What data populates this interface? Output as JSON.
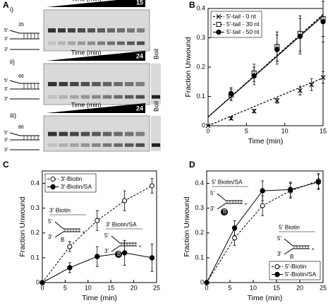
{
  "panel_labels": [
    "A",
    "B",
    "C",
    "D"
  ],
  "gels": [
    {
      "label": "i)",
      "wedge": "Time (min)",
      "end": "15",
      "strands": [
        "5'",
        "35",
        "3'",
        "3'"
      ],
      "lanes": 10,
      "boil": null
    },
    {
      "label": "ii)",
      "wedge": "Time (min)",
      "end": "24",
      "strands": [
        "5'",
        "66",
        "3'",
        "3'"
      ],
      "lanes": 9,
      "boil": "Boil"
    },
    {
      "label": "iii)",
      "wedge": "Time (min)",
      "end": "24",
      "strands": [
        "5'",
        "86",
        "3'",
        "3'"
      ],
      "lanes": 9,
      "boil": "Boil"
    }
  ],
  "chart_data": [
    {
      "type": "scatter",
      "x_label": "Time (min)",
      "y_label": "Fraction Unwound",
      "xlim": [
        0,
        15
      ],
      "xticks": [
        0,
        5,
        10,
        15
      ],
      "ylim": [
        0,
        0.4
      ],
      "yticks": [
        0,
        0.1,
        0.2,
        0.3,
        0.4
      ],
      "legend": "upper left",
      "series": [
        {
          "name": "5'-tail - 0 nt",
          "color": "#000000",
          "marker": "x",
          "dashed": true,
          "x": [
            0,
            3,
            6,
            9,
            12,
            13.5,
            15
          ],
          "values": [
            0,
            0.025,
            0.05,
            0.085,
            0.12,
            0.14,
            0.165
          ],
          "errors": [
            0,
            0.005,
            0.006,
            0.008,
            0.015,
            0.02,
            0.02
          ],
          "fit_x": [
            0,
            15
          ],
          "fit_y": [
            0,
            0.163
          ]
        },
        {
          "name": "5'-tail - 30 nt",
          "color": "#000000",
          "marker": "square",
          "dashed": true,
          "x": [
            3,
            6,
            9,
            12,
            15
          ],
          "values": [
            0.105,
            0.18,
            0.27,
            0.315,
            0.365
          ],
          "errors": [
            0.02,
            0.03,
            0.05,
            0.06,
            0.06
          ],
          "fit_x": [
            0,
            15
          ],
          "fit_y": [
            0.03,
            0.38
          ]
        },
        {
          "name": "5'-tail - 50 nt",
          "color": "#000000",
          "marker": "circle-filled",
          "dashed": false,
          "x": [
            3,
            6,
            9,
            12,
            15
          ],
          "values": [
            0.11,
            0.17,
            0.26,
            0.305,
            0.355
          ],
          "errors": [
            0.02,
            0.03,
            0.05,
            0.06,
            0.07
          ],
          "fit_x": [
            0,
            15
          ],
          "fit_y": [
            0.03,
            0.375
          ]
        }
      ],
      "annotations": []
    },
    {
      "type": "line",
      "x_label": "Time (min)",
      "y_label": "Fraction Unwound",
      "xlim": [
        0,
        25
      ],
      "xticks": [
        0,
        5,
        10,
        15,
        20,
        25
      ],
      "ylim": [
        0,
        0.45
      ],
      "yticks": [
        0,
        0.1,
        0.2,
        0.3,
        0.4
      ],
      "legend": "upper left",
      "series": [
        {
          "name": "3'-Biotin",
          "color": "#000000",
          "marker": "circle-open",
          "dashed": true,
          "x": [
            0,
            6,
            12,
            18,
            24
          ],
          "values": [
            0,
            0.145,
            0.25,
            0.33,
            0.39
          ],
          "errors": [
            0,
            0.02,
            0.04,
            0.04,
            0.03
          ]
        },
        {
          "name": "3'-Biotin/SA",
          "color": "#000000",
          "marker": "circle-filled",
          "dashed": false,
          "x": [
            0,
            6,
            12,
            18,
            24
          ],
          "values": [
            0,
            0.06,
            0.105,
            0.12,
            0.1
          ],
          "errors": [
            0,
            0.02,
            0.04,
            0.05,
            0.055
          ]
        }
      ],
      "annotations": [
        {
          "text": "3' Biotin",
          "parts": [
            "5'",
            "3'",
            "B",
            "*"
          ],
          "streptavidin": false
        },
        {
          "text": "3' Biotin/SA",
          "parts": [
            "5'",
            "3'",
            "B",
            "*"
          ],
          "streptavidin": true
        }
      ]
    },
    {
      "type": "line",
      "x_label": "Time (min)",
      "y_label": "Fraction Unwound",
      "xlim": [
        0,
        25
      ],
      "xticks": [
        0,
        5,
        10,
        15,
        20,
        25
      ],
      "ylim": [
        0,
        0.45
      ],
      "yticks": [
        0,
        0.1,
        0.2,
        0.3,
        0.4
      ],
      "legend": "lower right",
      "series": [
        {
          "name": "5'-Biotin",
          "color": "#000000",
          "marker": "circle-open",
          "dashed": true,
          "x": [
            0,
            6,
            12,
            18,
            24
          ],
          "values": [
            0,
            0.18,
            0.31,
            0.37,
            0.41
          ],
          "errors": [
            0,
            0.03,
            0.04,
            0.03,
            0.03
          ]
        },
        {
          "name": "5'-Biotin/SA",
          "color": "#000000",
          "marker": "circle-filled",
          "dashed": false,
          "x": [
            0,
            6,
            12,
            18,
            24
          ],
          "values": [
            0,
            0.22,
            0.37,
            0.375,
            0.405
          ],
          "errors": [
            0,
            0.03,
            0.04,
            0.03,
            0.03
          ]
        }
      ],
      "annotations": [
        {
          "text": "5' Biotin/SA",
          "parts": [
            "5'",
            "3'",
            "B",
            "*"
          ],
          "streptavidin": true
        },
        {
          "text": "5' Biotin",
          "parts": [
            "5'",
            "3'",
            "B",
            "*"
          ],
          "streptavidin": false
        }
      ]
    }
  ]
}
